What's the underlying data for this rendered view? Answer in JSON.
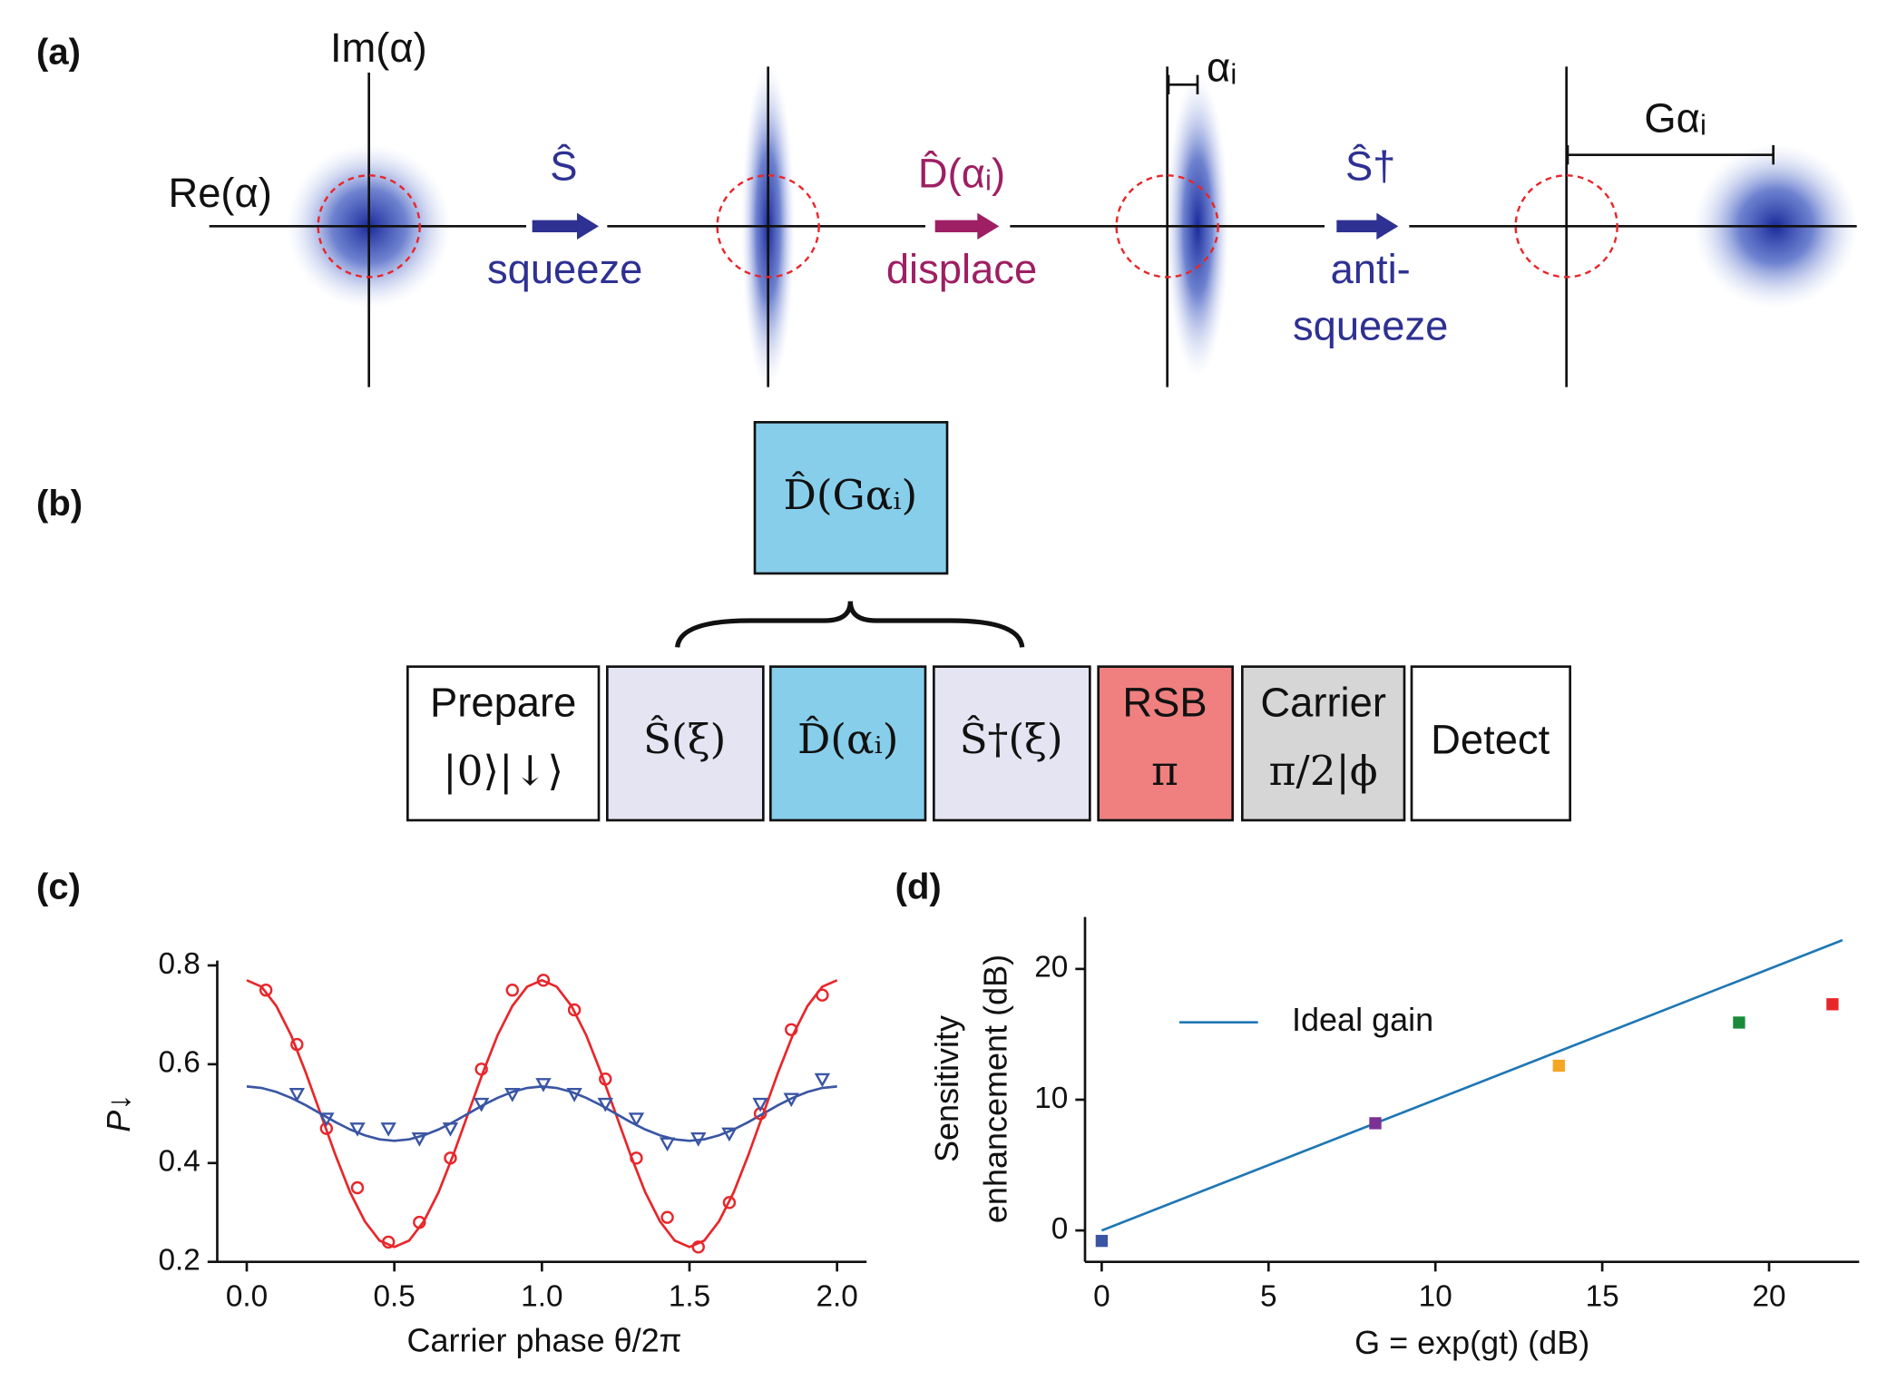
{
  "panel_labels": [
    "(a)",
    "(b)",
    "(c)",
    "(d)"
  ],
  "panel_a": {
    "im_axis": "Im(α)",
    "re_axis": "Re(α)",
    "steps": [
      {
        "operator": "Ŝ",
        "label": [
          "squeeze"
        ]
      },
      {
        "operator": "D̂(αᵢ)",
        "label": [
          "displace"
        ]
      },
      {
        "operator": "Ŝ†",
        "label": [
          "anti-",
          "squeeze"
        ]
      }
    ],
    "alpha_i": "αᵢ",
    "g_alpha_i": "Gαᵢ"
  },
  "panel_b": {
    "combined": "D̂(Gαᵢ)",
    "sequence": [
      {
        "lines": [
          "Prepare",
          "|0⟩|↓⟩"
        ]
      },
      {
        "lines": [
          "Ŝ(ξ)"
        ]
      },
      {
        "lines": [
          "D̂(αᵢ)"
        ]
      },
      {
        "lines": [
          "Ŝ†(ξ)"
        ]
      },
      {
        "lines": [
          "RSB",
          "π"
        ]
      },
      {
        "lines": [
          "Carrier",
          "π/2|ϕ"
        ]
      },
      {
        "lines": [
          "Detect"
        ]
      }
    ]
  },
  "chart_data": [
    {
      "type": "line",
      "xlabel": "Carrier phase θ/2π",
      "ylabel": "P↓",
      "xlim": [
        -0.1,
        2.1
      ],
      "ylim": [
        0.2,
        0.8
      ],
      "xticks": [
        {
          "value": 0,
          "label": "0.0"
        },
        0.5,
        {
          "value": 1,
          "label": "1.0"
        },
        1.5,
        {
          "value": 2,
          "label": "2.0"
        }
      ],
      "yticks": [
        0.2,
        0.4,
        0.6,
        0.8
      ],
      "x": [
        0.065,
        0.17,
        0.27,
        0.375,
        0.48,
        0.585,
        0.69,
        0.795,
        0.9,
        1.005,
        1.11,
        1.215,
        1.32,
        1.425,
        1.53,
        1.635,
        1.74,
        1.845,
        1.95
      ],
      "series": [
        {
          "color": "#e8262a",
          "marker": "circle",
          "values": [
            0.75,
            0.64,
            0.47,
            0.35,
            0.24,
            0.28,
            0.41,
            0.59,
            0.75,
            0.77,
            0.71,
            0.57,
            0.41,
            0.29,
            0.23,
            0.32,
            0.5,
            0.67,
            0.74
          ]
        },
        {
          "color": "#3a55a4",
          "marker": "triangle",
          "values": [
            null,
            0.54,
            0.49,
            0.47,
            0.47,
            0.45,
            0.47,
            0.52,
            0.54,
            0.56,
            0.54,
            0.52,
            0.49,
            0.44,
            0.45,
            0.46,
            0.52,
            0.53,
            0.57
          ]
        }
      ],
      "fit_x": [
        0,
        0.05,
        0.1,
        0.15,
        0.2,
        0.25,
        0.3,
        0.35,
        0.4,
        0.45,
        0.5,
        0.55,
        0.6,
        0.65,
        0.7,
        0.75,
        0.8,
        0.85,
        0.9,
        0.95,
        1,
        1.05,
        1.1,
        1.15,
        1.2,
        1.25,
        1.3,
        1.35,
        1.4,
        1.45,
        1.5,
        1.55,
        1.6,
        1.65,
        1.7,
        1.75,
        1.8,
        1.85,
        1.9,
        1.95,
        2
      ],
      "fits": [
        {
          "color": "#e8262a",
          "values": [
            0.77,
            0.757,
            0.718,
            0.659,
            0.583,
            0.5,
            0.417,
            0.341,
            0.282,
            0.243,
            0.23,
            0.243,
            0.282,
            0.341,
            0.417,
            0.5,
            0.583,
            0.659,
            0.718,
            0.757,
            0.77,
            0.757,
            0.718,
            0.659,
            0.583,
            0.5,
            0.417,
            0.341,
            0.282,
            0.243,
            0.23,
            0.243,
            0.282,
            0.341,
            0.417,
            0.5,
            0.583,
            0.659,
            0.718,
            0.757,
            0.77
          ]
        },
        {
          "color": "#3a55a4",
          "values": [
            0.555,
            0.552,
            0.544,
            0.532,
            0.517,
            0.5,
            0.483,
            0.468,
            0.456,
            0.448,
            0.445,
            0.448,
            0.456,
            0.468,
            0.483,
            0.5,
            0.517,
            0.532,
            0.544,
            0.552,
            0.555,
            0.552,
            0.544,
            0.532,
            0.517,
            0.5,
            0.483,
            0.468,
            0.456,
            0.448,
            0.445,
            0.448,
            0.456,
            0.468,
            0.483,
            0.5,
            0.517,
            0.532,
            0.544,
            0.552,
            0.555
          ]
        }
      ]
    },
    {
      "type": "scatter",
      "xlabel": "G = exp(gt) (dB)",
      "ylabel": [
        "Sensitivity",
        "enhancement (dB)"
      ],
      "xlim": [
        -0.5,
        22.7
      ],
      "ylim": [
        -2.4,
        23.6
      ],
      "xticks": [
        0,
        5,
        10,
        15,
        20
      ],
      "yticks": [
        0,
        10,
        20
      ],
      "line": {
        "name": "Ideal gain",
        "color": "#1f77b4",
        "x": [
          0,
          22.2
        ],
        "values": [
          0,
          22.2
        ]
      },
      "points": {
        "x": [
          0,
          8.2,
          13.7,
          19.1,
          21.9
        ],
        "values": [
          -0.8,
          8.2,
          12.6,
          15.9,
          17.3
        ],
        "colors": [
          "#3a55a4",
          "#7b3294",
          "#f5a623",
          "#1a8a3a",
          "#e8262a"
        ]
      }
    }
  ]
}
